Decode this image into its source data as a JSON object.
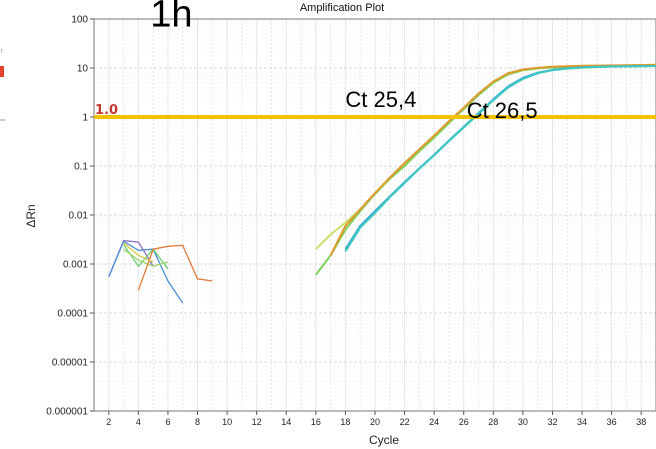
{
  "chart_data": {
    "type": "line",
    "title": "Amplification Plot",
    "xlabel": "Cycle",
    "ylabel": "ΔRn",
    "y_scale": "log",
    "xlim": [
      1,
      39
    ],
    "ylim": [
      1e-06,
      100
    ],
    "x_ticks": [
      "2",
      "4",
      "6",
      "8",
      "10",
      "12",
      "14",
      "16",
      "18",
      "20",
      "22",
      "24",
      "26",
      "28",
      "30",
      "32",
      "34",
      "36",
      "38"
    ],
    "y_ticks": [
      {
        "value": 100,
        "label": "100"
      },
      {
        "value": 10,
        "label": "10"
      },
      {
        "value": 1,
        "label": "1"
      },
      {
        "value": 0.1,
        "label": "0.1"
      },
      {
        "value": 0.01,
        "label": "0.01"
      },
      {
        "value": 0.001,
        "label": "0.001"
      },
      {
        "value": 0.0001,
        "label": "0.0001"
      },
      {
        "value": 1e-05,
        "label": "0.00001"
      },
      {
        "value": 1e-06,
        "label": "0.000001"
      }
    ],
    "grid": true,
    "threshold": {
      "value": 1,
      "label": "1.0",
      "color": "#f2c200"
    },
    "annotations": [
      {
        "text": "1h",
        "x": 4.8,
        "y": 70,
        "style": "big"
      },
      {
        "text": "Ct 25,4",
        "x": 18.0,
        "y": 1.6,
        "style": "ct"
      },
      {
        "text": "Ct 26,5",
        "x": 26.2,
        "y": 0.95,
        "style": "ct"
      }
    ],
    "series": [
      {
        "color": "#8e6fc9",
        "x": [
          2,
          3,
          4,
          5
        ],
        "y": [
          0.00055,
          0.003,
          0.0028,
          0.0009
        ]
      },
      {
        "color": "#4a8fd6",
        "x": [
          2,
          3,
          4,
          5,
          6,
          7
        ],
        "y": [
          0.00055,
          0.0029,
          0.0019,
          0.002,
          0.00045,
          0.00016
        ]
      },
      {
        "color": "#6fcf73",
        "x": [
          3,
          4,
          5,
          6
        ],
        "y": [
          0.0025,
          0.0009,
          0.002,
          0.0008
        ]
      },
      {
        "color": "#9bd66c",
        "x": [
          3,
          4,
          5,
          6
        ],
        "y": [
          0.002,
          0.0012,
          0.0009,
          0.0011
        ]
      },
      {
        "color": "#e07b39",
        "x": [
          4,
          5,
          6,
          7,
          8,
          9
        ],
        "y": [
          0.00029,
          0.002,
          0.0023,
          0.0024,
          0.0005,
          0.00045
        ]
      },
      {
        "color": "#d6c94a",
        "x": [
          3,
          4,
          5
        ],
        "y": [
          0.0027,
          0.0015,
          0.0011
        ]
      },
      {
        "color": "#c9e06b",
        "x": [
          16,
          17,
          18,
          19,
          20,
          21,
          22,
          23,
          24,
          25,
          26,
          27,
          28,
          29,
          30,
          31,
          32,
          33,
          34,
          35,
          36,
          37,
          38,
          39
        ],
        "y": [
          0.002,
          0.004,
          0.007,
          0.013,
          0.027,
          0.055,
          0.11,
          0.21,
          0.4,
          0.78,
          1.5,
          2.9,
          5.1,
          7.5,
          9.1,
          10.0,
          10.5,
          10.8,
          11.0,
          11.1,
          11.2,
          11.3,
          11.4,
          11.5
        ]
      },
      {
        "color": "#7fd15a",
        "x": [
          16,
          17,
          18,
          19,
          20,
          21,
          22,
          23,
          24,
          25,
          26,
          27,
          28,
          29,
          30,
          31,
          32,
          33,
          34,
          35,
          36,
          37,
          38,
          39
        ],
        "y": [
          0.0006,
          0.0015,
          0.005,
          0.012,
          0.027,
          0.055,
          0.1,
          0.2,
          0.38,
          0.75,
          1.45,
          2.8,
          5.0,
          7.4,
          9.0,
          9.8,
          10.3,
          10.6,
          10.8,
          10.9,
          11.0,
          11.1,
          11.2,
          11.3
        ]
      },
      {
        "color": "#e09a2b",
        "x": [
          17,
          18,
          19,
          20,
          21,
          22,
          23,
          24,
          25,
          26,
          27,
          28,
          29,
          30,
          31,
          32,
          33,
          34,
          35,
          36,
          37,
          38,
          39
        ],
        "y": [
          0.0015,
          0.006,
          0.013,
          0.028,
          0.058,
          0.115,
          0.22,
          0.42,
          0.82,
          1.55,
          3.0,
          5.3,
          7.8,
          9.3,
          10.1,
          10.6,
          10.9,
          11.1,
          11.2,
          11.3,
          11.4,
          11.5,
          11.6
        ]
      },
      {
        "color": "#3aa8d8",
        "x": [
          18,
          19,
          20,
          21,
          22,
          23,
          24,
          25,
          26,
          27,
          28,
          29,
          30,
          31,
          32,
          33,
          34,
          35,
          36,
          37,
          38,
          39
        ],
        "y": [
          0.002,
          0.006,
          0.012,
          0.024,
          0.047,
          0.09,
          0.17,
          0.33,
          0.63,
          1.2,
          2.3,
          4.2,
          6.3,
          8.0,
          9.2,
          9.9,
          10.3,
          10.6,
          10.8,
          10.9,
          11.0,
          11.0
        ]
      },
      {
        "color": "#3ec9c0",
        "x": [
          18,
          19,
          20,
          21,
          22,
          23,
          24,
          25,
          26,
          27,
          28,
          29,
          30,
          31,
          32,
          33,
          34,
          35,
          36,
          37,
          38,
          39
        ],
        "y": [
          0.0018,
          0.0055,
          0.011,
          0.023,
          0.045,
          0.088,
          0.165,
          0.32,
          0.61,
          1.15,
          2.2,
          4.0,
          6.0,
          7.8,
          9.0,
          9.7,
          10.2,
          10.5,
          10.7,
          10.8,
          10.9,
          11.0
        ]
      }
    ]
  },
  "edge_marks": {
    "left_top": "t"
  }
}
